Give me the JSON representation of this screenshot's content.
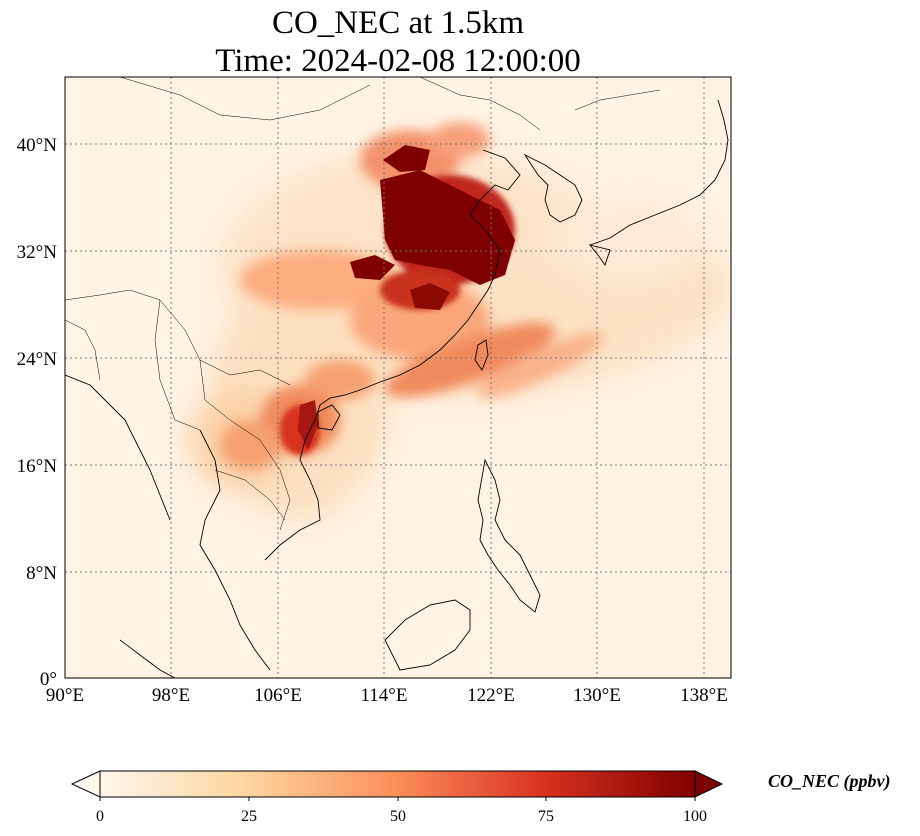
{
  "figure": {
    "title_line1": "CO_NEC at 1.5km",
    "title_line2": "Time: 2024-02-08 12:00:00"
  },
  "map": {
    "variable": "CO_NEC",
    "height": "1.5km",
    "lon_range": [
      90,
      140
    ],
    "lat_range": [
      0,
      45
    ],
    "gridlines": "dotted",
    "lon_ticks": [
      "90°E",
      "98°E",
      "106°E",
      "114°E",
      "122°E",
      "130°E",
      "138°E"
    ],
    "lat_ticks": [
      "0°",
      "8°N",
      "16°N",
      "24°N",
      "32°N",
      "40°N"
    ],
    "colormap": "OrRd"
  },
  "colorbar": {
    "label": "CO_NEC (ppbv)",
    "min": 0,
    "max": 100,
    "ticks": [
      "0",
      "25",
      "50",
      "75",
      "100"
    ],
    "colors": [
      "#fff7ec",
      "#fdd49e",
      "#fc8d59",
      "#d7301f",
      "#7f0000"
    ],
    "extend": "both"
  }
}
